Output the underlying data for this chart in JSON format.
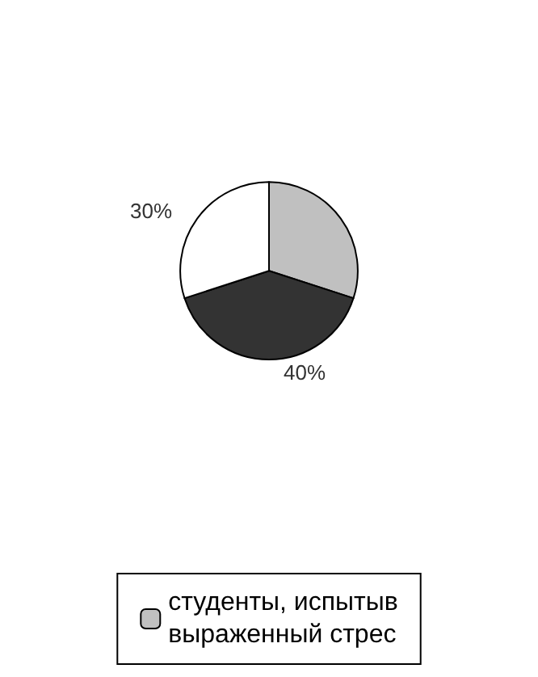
{
  "chart_data": {
    "type": "pie",
    "categories": [
      "студенты, испытыв\nвыраженный стрес",
      null,
      null
    ],
    "values": [
      30,
      40,
      30
    ],
    "colors": [
      "#c0c0c0",
      "#333333",
      "#ffffff"
    ],
    "value_labels": [
      null,
      "40%",
      "30%"
    ],
    "legend": "bottom"
  }
}
